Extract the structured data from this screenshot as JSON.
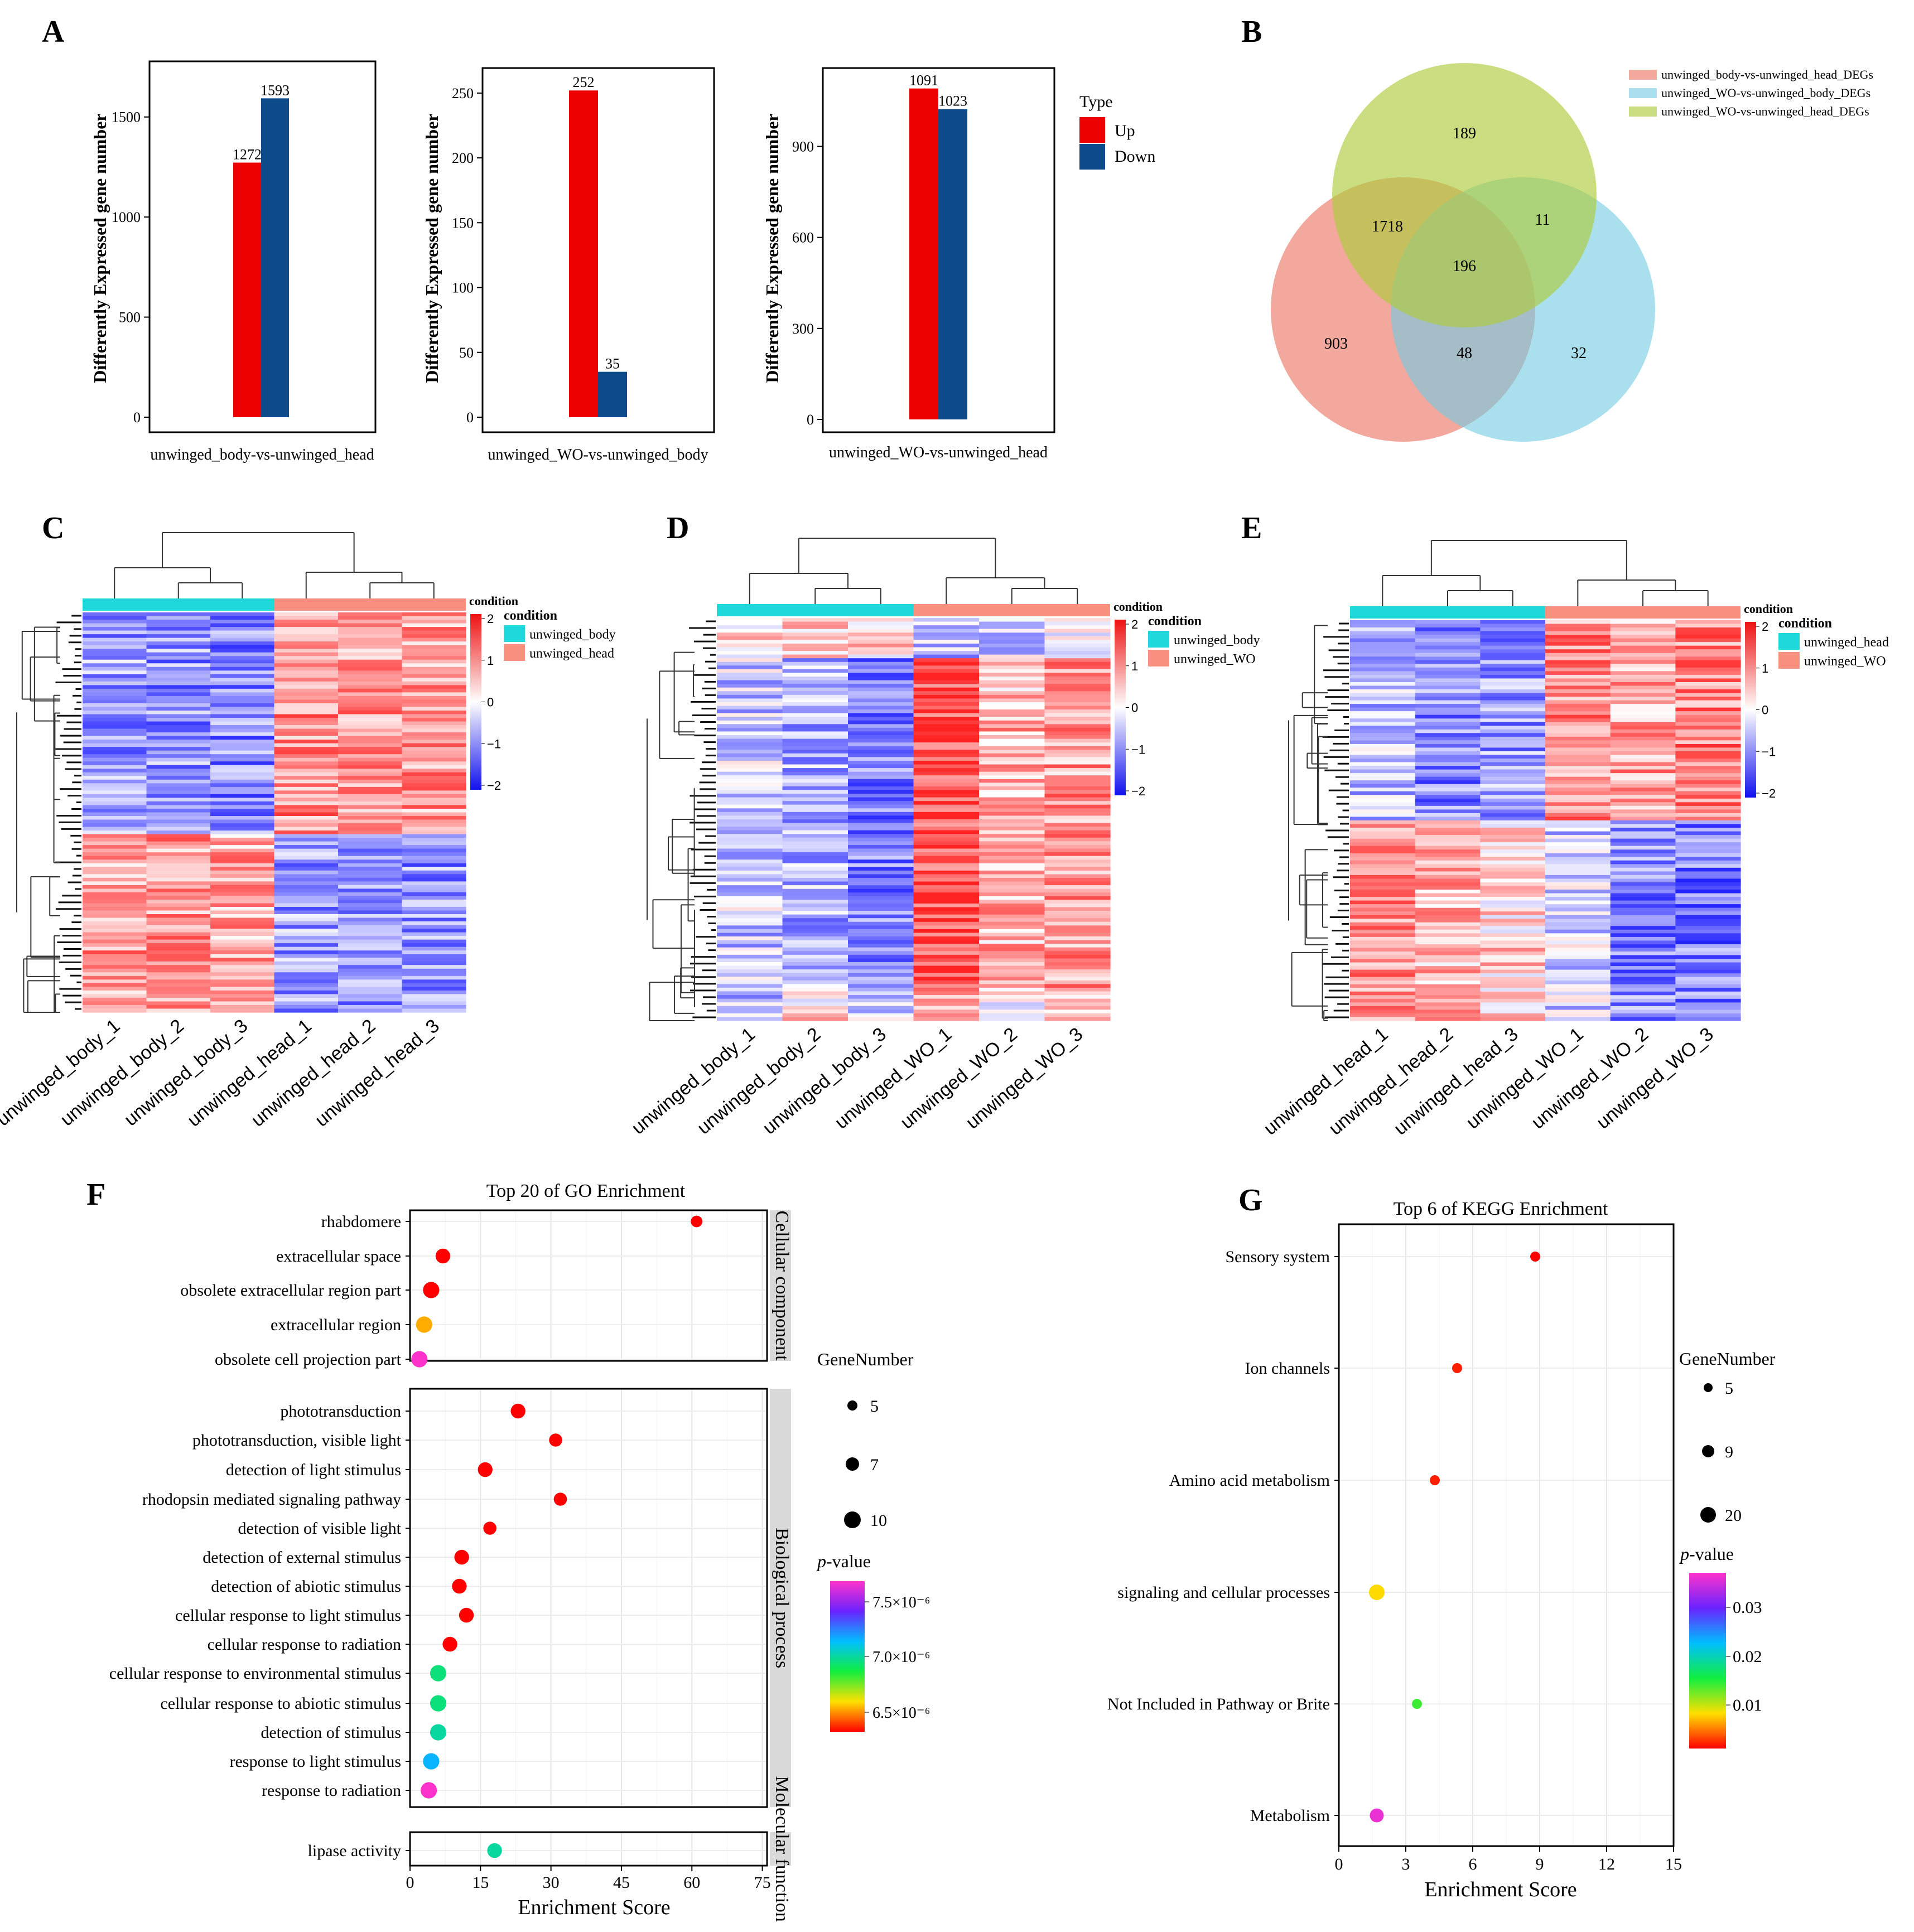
{
  "panel_labels": [
    "A",
    "B",
    "C",
    "D",
    "E",
    "F",
    "G"
  ],
  "colors": {
    "up": "#ee0000",
    "down": "#0d4b8b",
    "venn_pink": "#ee8374",
    "venn_blue": "#71cbe3",
    "venn_green": "#aecb3c",
    "cond_cyan": "#1fd8dc",
    "cond_salmon": "#f89080"
  },
  "chart_data": [
    {
      "id": "A1",
      "type": "bar",
      "xlabel": "unwinged_body-vs-unwinged_head",
      "ylabel": "Differently Expressed gene number",
      "ylim": [
        0,
        1750
      ],
      "ticks": [
        0,
        500,
        1000,
        1500
      ],
      "series": [
        {
          "name": "Up",
          "values": [
            1272
          ]
        },
        {
          "name": "Down",
          "values": [
            1593
          ]
        }
      ]
    },
    {
      "id": "A2",
      "type": "bar",
      "xlabel": "unwinged_WO-vs-unwinged_body",
      "ylabel": "Differently Expressed gene number",
      "ylim": [
        0,
        265
      ],
      "ticks": [
        0,
        50,
        100,
        150,
        200,
        250
      ],
      "series": [
        {
          "name": "Up",
          "values": [
            252
          ]
        },
        {
          "name": "Down",
          "values": [
            35
          ]
        }
      ]
    },
    {
      "id": "A3",
      "type": "bar",
      "xlabel": "unwinged_WO-vs-unwinged_head",
      "ylabel": "Differently Expressed gene number",
      "ylim": [
        0,
        1140
      ],
      "ticks": [
        0,
        300,
        600,
        900
      ],
      "series": [
        {
          "name": "Up",
          "values": [
            1091
          ]
        },
        {
          "name": "Down",
          "values": [
            1023
          ]
        }
      ]
    },
    {
      "id": "F",
      "type": "scatter",
      "title": "Top 20 of GO Enrichment",
      "xlabel": "Enrichment Score",
      "xlim": [
        0,
        76
      ],
      "xticks": [
        0,
        15,
        30,
        45,
        60,
        75
      ],
      "facets": [
        {
          "label": "Cellular component",
          "terms": [
            {
              "term": "rhabdomere",
              "score": 61,
              "gene_number": 6,
              "p": 6.3e-06
            },
            {
              "term": "extracellular space",
              "score": 7,
              "gene_number": 8,
              "p": 6.3e-06
            },
            {
              "term": "obsolete extracellular region part",
              "score": 4.5,
              "gene_number": 9,
              "p": 6.3e-06
            },
            {
              "term": "extracellular region",
              "score": 3,
              "gene_number": 9,
              "p": 6.5e-06
            },
            {
              "term": "obsolete cell projection part",
              "score": 2,
              "gene_number": 9,
              "p": 7.6e-06
            }
          ]
        },
        {
          "label": "Biological process",
          "terms": [
            {
              "term": "phototransduction",
              "score": 23,
              "gene_number": 8,
              "p": 6.3e-06
            },
            {
              "term": "phototransduction, visible light",
              "score": 31,
              "gene_number": 7,
              "p": 6.3e-06
            },
            {
              "term": "detection of light stimulus",
              "score": 16,
              "gene_number": 8,
              "p": 6.3e-06
            },
            {
              "term": "rhodopsin mediated signaling pathway",
              "score": 32,
              "gene_number": 7,
              "p": 6.3e-06
            },
            {
              "term": "detection of visible light",
              "score": 17,
              "gene_number": 7,
              "p": 6.3e-06
            },
            {
              "term": "detection of external stimulus",
              "score": 11,
              "gene_number": 8,
              "p": 6.3e-06
            },
            {
              "term": "detection of abiotic stimulus",
              "score": 10.5,
              "gene_number": 8,
              "p": 6.3e-06
            },
            {
              "term": "cellular response to light stimulus",
              "score": 12,
              "gene_number": 8,
              "p": 6.3e-06
            },
            {
              "term": "cellular response to radiation",
              "score": 8.5,
              "gene_number": 8,
              "p": 6.3e-06
            },
            {
              "term": "cellular response to environmental stimulus",
              "score": 6,
              "gene_number": 9,
              "p": 6.9e-06
            },
            {
              "term": "cellular response to abiotic stimulus",
              "score": 6,
              "gene_number": 9,
              "p": 6.9e-06
            },
            {
              "term": "detection of stimulus",
              "score": 6,
              "gene_number": 9,
              "p": 6.95e-06
            },
            {
              "term": "response to light stimulus",
              "score": 4.5,
              "gene_number": 9,
              "p": 7.1e-06
            },
            {
              "term": "response to radiation",
              "score": 4,
              "gene_number": 9,
              "p": 7.6e-06
            }
          ]
        },
        {
          "label": "Molecular function",
          "terms": [
            {
              "term": "lipase activity",
              "score": 18,
              "gene_number": 8,
              "p": 6.95e-06
            }
          ]
        }
      ],
      "legend": {
        "size_title": "GeneNumber",
        "size_values": [
          "5",
          "7",
          "10"
        ],
        "color_title_italic": "p",
        "color_title_rest": "-value",
        "color_ticks": [
          "7.5×10⁻⁶",
          "7.0×10⁻⁶",
          "6.5×10⁻⁶"
        ]
      }
    },
    {
      "id": "G",
      "type": "scatter",
      "title": "Top 6 of KEGG Enrichment",
      "xlabel": "Enrichment Score",
      "xlim": [
        0,
        15
      ],
      "xticks": [
        0,
        3,
        6,
        9,
        12,
        15
      ],
      "terms": [
        {
          "term": "Sensory system",
          "score": 8.8,
          "gene_number": 5,
          "p": 0.001
        },
        {
          "term": "Ion channels",
          "score": 5.3,
          "gene_number": 6,
          "p": 0.002
        },
        {
          "term": "Amino acid metabolism",
          "score": 4.3,
          "gene_number": 6,
          "p": 0.002
        },
        {
          "term": "signaling and cellular processes",
          "score": 1.7,
          "gene_number": 20,
          "p": 0.008
        },
        {
          "term": "Not Included in Pathway or Brite",
          "score": 3.5,
          "gene_number": 6,
          "p": 0.014
        },
        {
          "term": "Metabolism",
          "score": 1.7,
          "gene_number": 15,
          "p": 0.036
        }
      ],
      "legend": {
        "size_title": "GeneNumber",
        "size_values": [
          "5",
          "9",
          "20"
        ],
        "color_title_italic": "p",
        "color_title_rest": "-value",
        "color_ticks": [
          "0.03",
          "0.02",
          "0.01"
        ]
      }
    }
  ],
  "legend_A": {
    "title": "Type",
    "items": [
      "Up",
      "Down"
    ]
  },
  "venn": {
    "legend": [
      "unwinged_body-vs-unwinged_head_DEGs",
      "unwinged_WO-vs-unwinged_body_DEGs",
      "unwinged_WO-vs-unwinged_head_DEGs"
    ],
    "counts": {
      "green_only": "189",
      "pink_green": "1718",
      "green_blue": "11",
      "all": "196",
      "pink_only": "903",
      "pink_blue": "48",
      "blue_only": "32"
    }
  },
  "heatmaps": [
    {
      "id": "C",
      "samples": [
        "unwinged_body_1",
        "unwinged_body_2",
        "unwinged_body_3",
        "unwinged_head_1",
        "unwinged_head_2",
        "unwinged_head_3"
      ],
      "conditions": [
        "unwinged_body",
        "unwinged_head"
      ],
      "legend_title": "condition",
      "scale": [
        "2",
        "1",
        "0",
        "−1",
        "−2"
      ]
    },
    {
      "id": "D",
      "samples": [
        "unwinged_body_1",
        "unwinged_body_2",
        "unwinged_body_3",
        "unwinged_WO_1",
        "unwinged_WO_2",
        "unwinged_WO_3"
      ],
      "conditions": [
        "unwinged_body",
        "unwinged_WO"
      ],
      "legend_title": "condition",
      "scale": [
        "2",
        "1",
        "0",
        "−1",
        "−2"
      ]
    },
    {
      "id": "E",
      "samples": [
        "unwinged_head_1",
        "unwinged_head_2",
        "unwinged_head_3",
        "unwinged_WO_1",
        "unwinged_WO_2",
        "unwinged_WO_3"
      ],
      "conditions": [
        "unwinged_head",
        "unwinged_WO"
      ],
      "legend_title": "condition",
      "scale": [
        "2",
        "1",
        "0",
        "−1",
        "−2"
      ]
    }
  ]
}
